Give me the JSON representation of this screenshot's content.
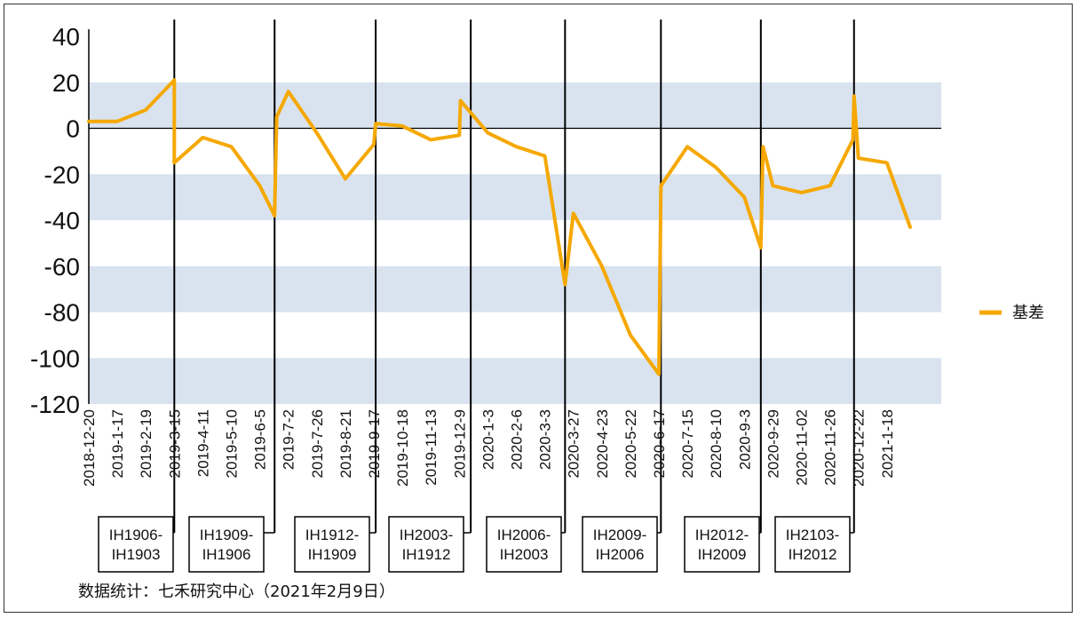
{
  "chart_data": {
    "type": "line",
    "ylim": [
      -120,
      40
    ],
    "yticks": [
      40,
      20,
      0,
      -20,
      -40,
      -60,
      -80,
      -100,
      -120
    ],
    "x_tick_labels": [
      "2018-12-20",
      "2019-1-17",
      "2019-2-19",
      "2019-3-15",
      "2019-4-11",
      "2019-5-10",
      "2019-6-5",
      "2019-7-2",
      "2019-7-26",
      "2019-8-21",
      "2019-9-17",
      "2019-10-18",
      "2019-11-13",
      "2019-12-9",
      "2020-1-3",
      "2020-2-6",
      "2020-3-3",
      "2020-3-27",
      "2020-4-23",
      "2020-5-22",
      "2020-6-17",
      "2020-7-15",
      "2020-8-10",
      "2020-9-3",
      "2020-9-29",
      "2020-11-02",
      "2020-11-26",
      "2020-12-22",
      "2021-1-18"
    ],
    "grid": "alternating horizontal bands",
    "legend_position": "right",
    "series": [
      {
        "name": "基差",
        "color": "#F5A800",
        "x": [
          "2018-12-20",
          "2019-1-17",
          "2019-2-19",
          "2019-3-15",
          "2019-3-15",
          "2019-4-11",
          "2019-5-10",
          "2019-6-5",
          "2019-6-19",
          "2019-6-21",
          "2019-7-2",
          "2019-7-26",
          "2019-8-21",
          "2019-9-17",
          "2019-9-19",
          "2019-10-18",
          "2019-11-13",
          "2019-12-9",
          "2019-12-10",
          "2020-1-3",
          "2020-2-6",
          "2020-3-3",
          "2020-3-20",
          "2020-3-27",
          "2020-4-23",
          "2020-5-22",
          "2020-6-17",
          "2020-6-19",
          "2020-7-15",
          "2020-8-10",
          "2020-9-3",
          "2020-9-18",
          "2020-9-20",
          "2020-9-29",
          "2020-11-02",
          "2020-11-26",
          "2020-12-17",
          "2020-12-18",
          "2020-12-22",
          "2021-1-18",
          "2021-2-9"
        ],
        "values": [
          3,
          3,
          8,
          21,
          -15,
          -4,
          -8,
          -25,
          -38,
          5,
          16,
          -2,
          -22,
          -7,
          2,
          1,
          -5,
          -3,
          12,
          -2,
          -8,
          -12,
          -68,
          -37,
          -60,
          -90,
          -107,
          -25,
          -8,
          -17,
          -30,
          -52,
          -8,
          -25,
          -28,
          -25,
          -5,
          14,
          -13,
          -15,
          -43
        ]
      }
    ],
    "vertical_markers": [
      {
        "at": "2019-3-15",
        "label_top": "IH1906-",
        "label_bottom": "IH1903"
      },
      {
        "at": "2019-6-19",
        "label_top": "IH1909-",
        "label_bottom": "IH1906"
      },
      {
        "at": "2019-9-19",
        "label_top": "IH1912-",
        "label_bottom": "IH1909"
      },
      {
        "at": "2019-12-19",
        "label_top": "IH2003-",
        "label_bottom": "IH1912"
      },
      {
        "at": "2020-3-20",
        "label_top": "IH2006-",
        "label_bottom": "IH2003"
      },
      {
        "at": "2020-6-19",
        "label_top": "IH2009-",
        "label_bottom": "IH2006"
      },
      {
        "at": "2020-9-18",
        "label_top": "IH2012-",
        "label_bottom": "IH2009"
      },
      {
        "at": "2020-12-18",
        "label_top": "IH2103-",
        "label_bottom": "IH2012"
      }
    ]
  },
  "source_note": "数据统计：七禾研究中心（2021年2月9日）"
}
